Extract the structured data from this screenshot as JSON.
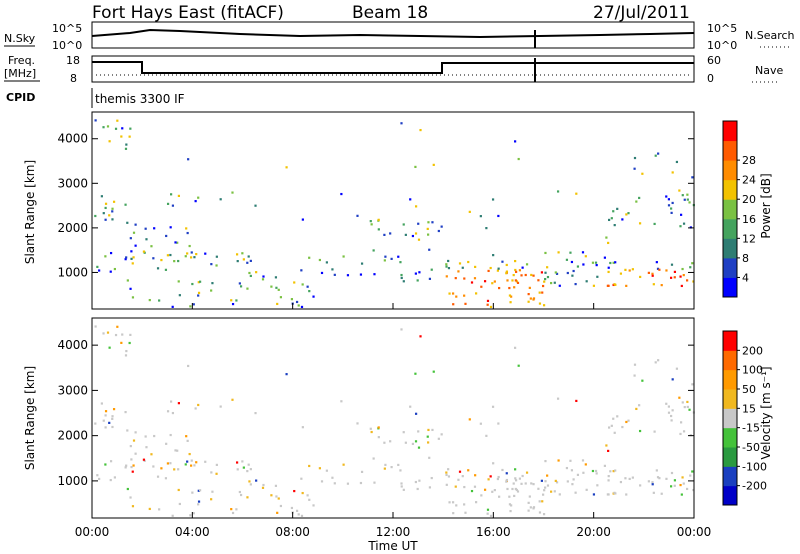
{
  "header": {
    "station": "Fort Hays East (fitACF)",
    "beam": "Beam 18",
    "date": "27/Jul/2011"
  },
  "top_panel": {
    "left_label": "N.Sky",
    "right_label": "N.Search",
    "left_ticks": [
      "10^5",
      "10^0"
    ],
    "right_ticks": [
      "10^5",
      "10^0"
    ]
  },
  "freq_panel": {
    "left_label_1": "Freq.",
    "left_label_2": "[MHz]",
    "right_label": "Nave",
    "left_ticks": [
      "18",
      "8"
    ],
    "right_ticks": [
      "60",
      "0"
    ]
  },
  "cpid_panel": {
    "label": "CPID",
    "value": "themis 3300 IF"
  },
  "colors": {
    "power": [
      "#0000ff",
      "#1f3fc4",
      "#2e7d73",
      "#44a35e",
      "#7ac142",
      "#f2c200",
      "#ff8c00",
      "#ff5a00",
      "#ff0000"
    ],
    "velocity": [
      "#ff0000",
      "#ff6a00",
      "#ff9a00",
      "#f0b820",
      "#c8c8c8",
      "#44c23a",
      "#2a9a40",
      "#1a3fc0",
      "#0000c8"
    ]
  },
  "chart_data": [
    {
      "type": "heatmap",
      "title": "",
      "xlabel": "Time UT",
      "ylabel": "Slant Range [km]",
      "xlim": [
        "00:00",
        "00:00"
      ],
      "ylim": [
        180,
        4600
      ],
      "x_ticks": [
        "00:00",
        "04:00",
        "08:00",
        "12:00",
        "16:00",
        "20:00",
        "00:00"
      ],
      "y_ticks": [
        1000,
        2000,
        3000,
        4000
      ],
      "colorbar_label": "Power [dB]",
      "colorbar_ticks": [
        "4",
        "8",
        "12",
        "16",
        "20",
        "24",
        "28"
      ],
      "grid": false
    },
    {
      "type": "heatmap",
      "title": "",
      "xlabel": "Time UT",
      "ylabel": "Slant Range [km]",
      "xlim": [
        "00:00",
        "00:00"
      ],
      "ylim": [
        180,
        4600
      ],
      "x_ticks": [
        "00:00",
        "04:00",
        "08:00",
        "12:00",
        "16:00",
        "20:00",
        "00:00"
      ],
      "y_ticks": [
        1000,
        2000,
        3000,
        4000
      ],
      "colorbar_label": "Velocity [m s⁻¹]",
      "colorbar_ticks": [
        "200",
        "100",
        "50",
        "15",
        "-15",
        "-50",
        "-100",
        "-200"
      ],
      "grid": false
    }
  ]
}
